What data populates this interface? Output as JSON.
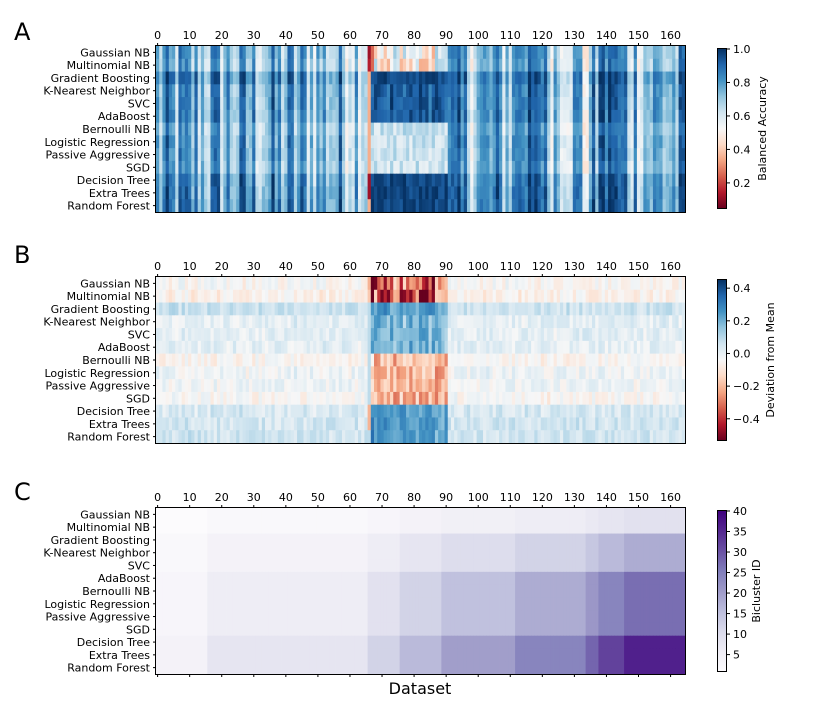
{
  "figure": {
    "xlabel": "Dataset"
  },
  "chart_data": [
    {
      "panel_label": "A",
      "type": "heatmap",
      "colormap": "RdBu",
      "rows": [
        "Gaussian NB",
        "Multinomial NB",
        "Gradient Boosting",
        "K-Nearest Neighbor",
        "SVC",
        "AdaBoost",
        "Bernoulli NB",
        "Logistic Regression",
        "Passive Aggressive",
        "SGD",
        "Decision Tree",
        "Extra Trees",
        "Random Forest"
      ],
      "x_ticks": [
        0,
        10,
        20,
        30,
        40,
        50,
        60,
        70,
        80,
        90,
        100,
        110,
        120,
        130,
        140,
        150,
        160
      ],
      "n_columns": 165,
      "colorbar": {
        "label": "Balanced Accuracy",
        "vmin": 0.05,
        "vmax": 1.0,
        "ticks": [
          1.0,
          0.8,
          0.6,
          0.4,
          0.2
        ],
        "tick_labels": [
          "1.0",
          "0.8",
          "0.6",
          "0.4",
          "0.2"
        ]
      }
    },
    {
      "panel_label": "B",
      "type": "heatmap",
      "colormap": "RdBu",
      "rows": [
        "Gaussian NB",
        "Multinomial NB",
        "Gradient Boosting",
        "K-Nearest Neighbor",
        "SVC",
        "AdaBoost",
        "Bernoulli NB",
        "Logistic Regression",
        "Passive Aggressive",
        "SGD",
        "Decision Tree",
        "Extra Trees",
        "Random Forest"
      ],
      "x_ticks": [
        0,
        10,
        20,
        30,
        40,
        50,
        60,
        70,
        80,
        90,
        100,
        110,
        120,
        130,
        140,
        150,
        160
      ],
      "n_columns": 165,
      "colorbar": {
        "label": "Deviation from Mean",
        "vmin": -0.53,
        "vmax": 0.45,
        "ticks": [
          0.4,
          0.2,
          0.0,
          -0.2,
          -0.4
        ],
        "tick_labels": [
          "0.4",
          "0.2",
          "0.0",
          "−0.2",
          "−0.4"
        ]
      }
    },
    {
      "panel_label": "C",
      "type": "heatmap",
      "colormap": "Purples",
      "rows": [
        "Gaussian NB",
        "Multinomial NB",
        "Gradient Boosting",
        "K-Nearest Neighbor",
        "SVC",
        "AdaBoost",
        "Bernoulli NB",
        "Logistic Regression",
        "Passive Aggressive",
        "SGD",
        "Decision Tree",
        "Extra Trees",
        "Random Forest"
      ],
      "x_ticks": [
        0,
        10,
        20,
        30,
        40,
        50,
        60,
        70,
        80,
        90,
        100,
        110,
        120,
        130,
        140,
        150,
        160
      ],
      "n_columns": 165,
      "col_groups": [
        0,
        16,
        66,
        76,
        89,
        112,
        134,
        138,
        146,
        165
      ],
      "row_groups": [
        0,
        2,
        5,
        10,
        13
      ],
      "group_values": [
        [
          1,
          2,
          3,
          4,
          5,
          6,
          7,
          8,
          9
        ],
        [
          2,
          4,
          6,
          8,
          10,
          12,
          14,
          16,
          18
        ],
        [
          3,
          6,
          9,
          12,
          15,
          18,
          21,
          24,
          27
        ],
        [
          4,
          8,
          12,
          16,
          20,
          24,
          28,
          32,
          36
        ]
      ],
      "colorbar": {
        "label": "Bicluster ID",
        "vmin": 1,
        "vmax": 40,
        "ticks": [
          40,
          35,
          30,
          25,
          20,
          15,
          10,
          5
        ],
        "tick_labels": [
          "40",
          "35",
          "30",
          "25",
          "20",
          "15",
          "10",
          "5"
        ]
      }
    }
  ]
}
